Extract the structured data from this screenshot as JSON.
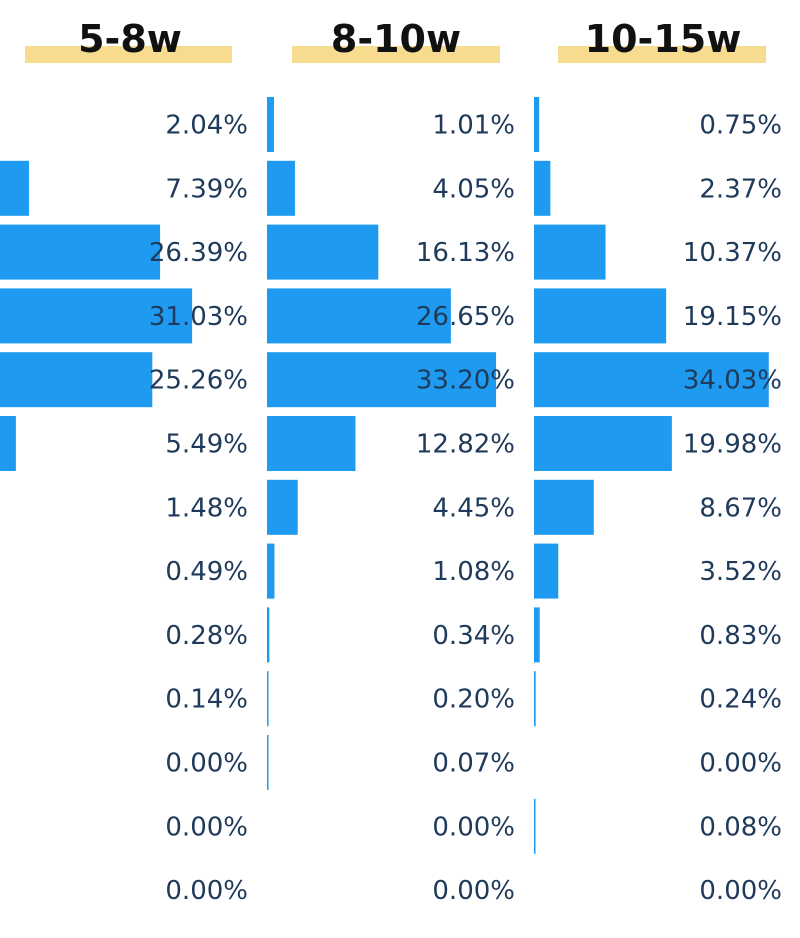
{
  "chart_data": {
    "type": "bar",
    "orientation": "horizontal",
    "colors": {
      "bar": "#1e9bf0",
      "title_highlight": "#f7dc8f",
      "label": "#1f3a5a",
      "title": "#111111"
    },
    "panels": [
      {
        "title": "5-8w",
        "values": [
          2.04,
          7.39,
          26.39,
          31.03,
          25.26,
          5.49,
          1.48,
          0.49,
          0.28,
          0.14,
          0.0,
          0.0,
          0.0
        ],
        "labels": [
          "2.04%",
          "7.39%",
          "26.39%",
          "31.03%",
          "25.26%",
          "5.49%",
          "1.48%",
          "0.49%",
          "0.28%",
          "0.14%",
          "0.00%",
          "0.00%",
          "0.00%"
        ]
      },
      {
        "title": "8-10w",
        "values": [
          1.01,
          4.05,
          16.13,
          26.65,
          33.2,
          12.82,
          4.45,
          1.08,
          0.34,
          0.2,
          0.07,
          0.0,
          0.0
        ],
        "labels": [
          "1.01%",
          "4.05%",
          "16.13%",
          "26.65%",
          "33.20%",
          "12.82%",
          "4.45%",
          "1.08%",
          "0.34%",
          "0.20%",
          "0.07%",
          "0.00%",
          "0.00%"
        ]
      },
      {
        "title": "10-15w",
        "values": [
          0.75,
          2.37,
          10.37,
          19.15,
          34.03,
          19.98,
          8.67,
          3.52,
          0.83,
          0.24,
          0.0,
          0.08,
          0.0
        ],
        "labels": [
          "0.75%",
          "2.37%",
          "10.37%",
          "19.15%",
          "34.03%",
          "19.98%",
          "8.67%",
          "3.52%",
          "0.83%",
          "0.24%",
          "0.00%",
          "0.08%",
          "0.00%"
        ]
      }
    ]
  }
}
